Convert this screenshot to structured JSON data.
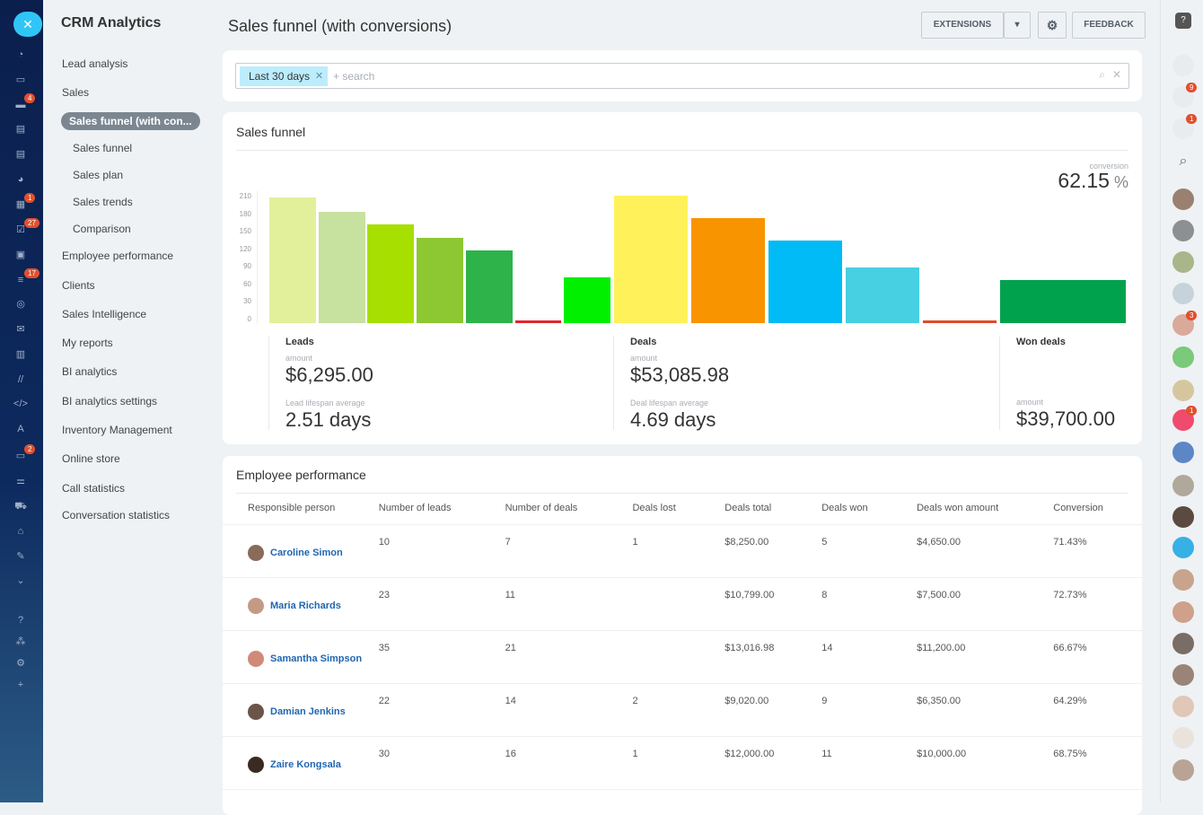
{
  "left_bar": {
    "badges": [
      "4",
      "1",
      "27",
      "17",
      "2"
    ]
  },
  "nav": {
    "title": "CRM Analytics",
    "items": [
      {
        "label": "Lead analysis",
        "level": 0
      },
      {
        "label": "Sales",
        "level": 0
      },
      {
        "label": "Sales funnel (with con...",
        "level": 1,
        "active": true
      },
      {
        "label": "Sales funnel",
        "level": 1
      },
      {
        "label": "Sales plan",
        "level": 1
      },
      {
        "label": "Sales trends",
        "level": 1
      },
      {
        "label": "Comparison",
        "level": 1
      },
      {
        "label": "Employee performance",
        "level": 0
      },
      {
        "label": "Clients",
        "level": 0
      },
      {
        "label": "Sales Intelligence",
        "level": 0
      },
      {
        "label": "My reports",
        "level": 0
      },
      {
        "label": "BI analytics",
        "level": 0
      },
      {
        "label": "BI analytics settings",
        "level": 0
      },
      {
        "label": "Inventory Management",
        "level": 0
      },
      {
        "label": "Online store",
        "level": 0
      },
      {
        "label": "Call statistics",
        "level": 0
      },
      {
        "label": "Conversation statistics",
        "level": 0
      }
    ]
  },
  "header": {
    "title": "Sales funnel (with conversions)",
    "extensions": "EXTENSIONS",
    "feedback": "FEEDBACK"
  },
  "filter": {
    "tag": "Last 30 days",
    "placeholder": "+ search"
  },
  "funnel": {
    "title": "Sales funnel",
    "conversion_label": "conversion",
    "conversion_value": "62.15",
    "conversion_unit": "%",
    "leads": {
      "label": "Leads",
      "amount_label": "amount",
      "amount": "$6,295.00",
      "lifespan_label": "Lead lifespan average",
      "lifespan": "2.51 days"
    },
    "deals": {
      "label": "Deals",
      "amount_label": "amount",
      "amount": "$53,085.98",
      "lifespan_label": "Deal lifespan average",
      "lifespan": "4.69 days"
    },
    "won": {
      "label": "Won deals",
      "amount_label": "amount",
      "amount": "$39,700.00"
    }
  },
  "chart_data": {
    "type": "bar",
    "ylim": [
      0,
      210
    ],
    "yticks": [
      "0",
      "30",
      "60",
      "90",
      "120",
      "150",
      "180",
      "210"
    ],
    "values": [
      215,
      190,
      169,
      146,
      124,
      4,
      78,
      218,
      179,
      141,
      95,
      3,
      74
    ],
    "colors": [
      "#e2f09c",
      "#c7e19f",
      "#a7df00",
      "#8dc832",
      "#2db34a",
      "#e0252f",
      "#00f000",
      "#fff15a",
      "#f89400",
      "#00bbf5",
      "#47d0e2",
      "#e04a2a",
      "#00a24e"
    ]
  },
  "employees": {
    "title": "Employee performance",
    "columns": [
      "Responsible person",
      "Number of leads",
      "Number of deals",
      "Deals lost",
      "Deals total",
      "Deals won",
      "Deals won amount",
      "Conversion"
    ],
    "rows": [
      [
        "Caroline Simon",
        "10",
        "7",
        "1",
        "$8,250.00",
        "5",
        "$4,650.00",
        "71.43%"
      ],
      [
        "Maria Richards",
        "23",
        "11",
        "",
        "$10,799.00",
        "8",
        "$7,500.00",
        "72.73%"
      ],
      [
        "Samantha Simpson",
        "35",
        "21",
        "",
        "$13,016.98",
        "14",
        "$11,200.00",
        "66.67%"
      ],
      [
        "Damian Jenkins",
        "22",
        "14",
        "2",
        "$9,020.00",
        "9",
        "$6,350.00",
        "64.29%"
      ],
      [
        "Zaire Kongsala",
        "30",
        "16",
        "1",
        "$12,000.00",
        "11",
        "$10,000.00",
        "68.75%"
      ]
    ]
  },
  "right_bar": {
    "badges": [
      "9",
      "1",
      "3",
      "1"
    ]
  }
}
